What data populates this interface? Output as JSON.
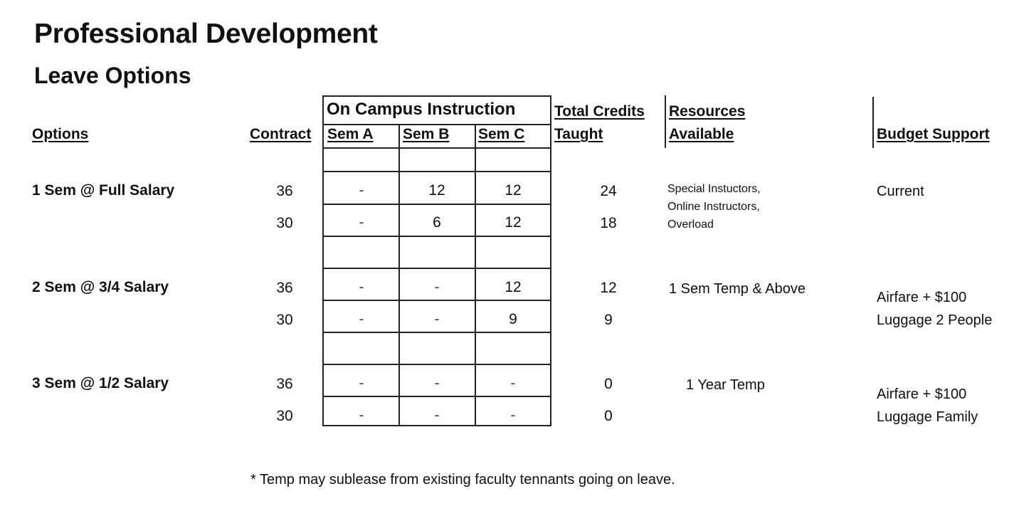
{
  "title": "Professional Development",
  "subtitle": "Leave Options",
  "headers": {
    "options": "Options",
    "contract": "Contract",
    "on_campus": "On Campus Instruction",
    "sem_a": "Sem A",
    "sem_b": "Sem B",
    "sem_c": "Sem C",
    "total_credits_1": "Total Credits",
    "total_credits_2": "Taught",
    "resources_1": "Resources",
    "resources_2": "Available",
    "budget": "Budget Support"
  },
  "groups": [
    {
      "option": "1 Sem @ Full Salary",
      "rows": [
        {
          "contract": "36",
          "sem_a": "-",
          "sem_b": "12",
          "sem_c": "12",
          "total": "24"
        },
        {
          "contract": "30",
          "sem_a": "-",
          "sem_b": "6",
          "sem_c": "12",
          "total": "18"
        }
      ],
      "resources": [
        "Special Instuctors,",
        "Online Instructors,",
        "Overload"
      ],
      "budget": [
        "Current"
      ]
    },
    {
      "option": "2 Sem @ 3/4 Salary",
      "rows": [
        {
          "contract": "36",
          "sem_a": "-",
          "sem_b": "-",
          "sem_c": "12",
          "total": "12"
        },
        {
          "contract": "30",
          "sem_a": "-",
          "sem_b": "-",
          "sem_c": "9",
          "total": "9"
        }
      ],
      "resources": [
        "1 Sem Temp & Above"
      ],
      "budget": [
        "Airfare + $100",
        "Luggage 2 People"
      ]
    },
    {
      "option": "3 Sem @ 1/2 Salary",
      "rows": [
        {
          "contract": "36",
          "sem_a": "-",
          "sem_b": "-",
          "sem_c": "-",
          "total": "0"
        },
        {
          "contract": "30",
          "sem_a": "-",
          "sem_b": "-",
          "sem_c": "-",
          "total": "0"
        }
      ],
      "resources": [
        "1 Year Temp"
      ],
      "budget": [
        "Airfare + $100",
        "Luggage Family"
      ]
    }
  ],
  "footnote": "* Temp may sublease from existing faculty tennants going on leave."
}
